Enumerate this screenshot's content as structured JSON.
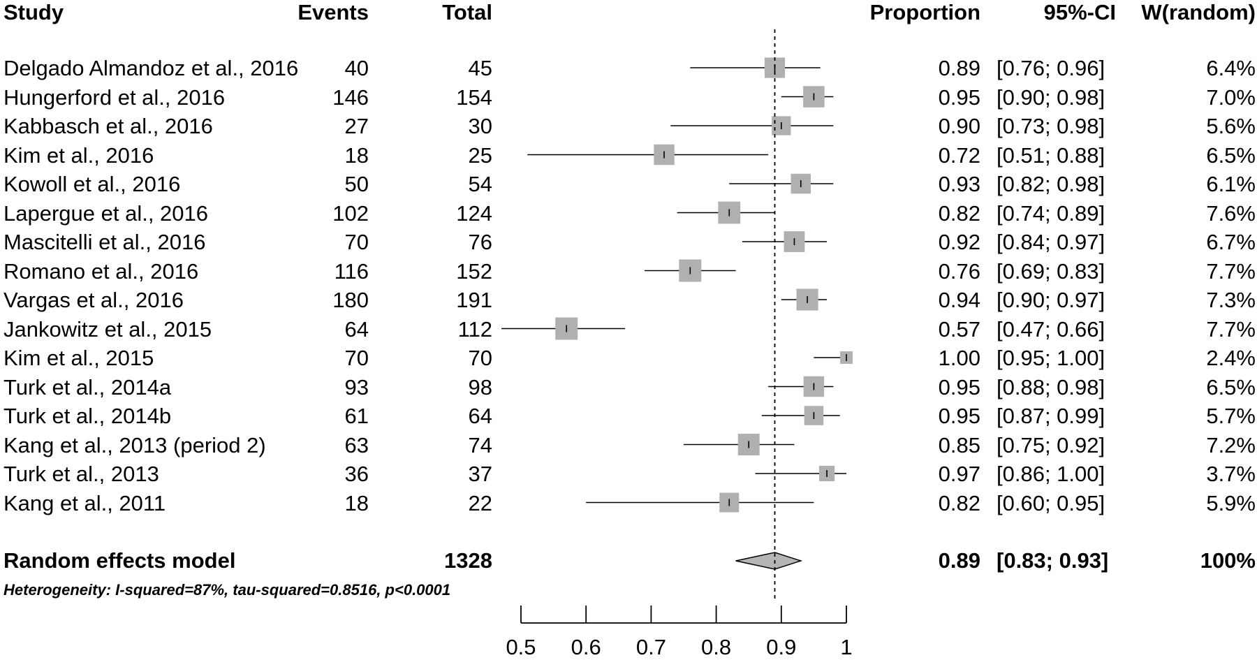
{
  "headers": {
    "study": "Study",
    "events": "Events",
    "total": "Total",
    "proportion": "Proportion",
    "ci": "95%-CI",
    "weight": "W(random)"
  },
  "chart_data": {
    "type": "forest",
    "xlim": [
      0.5,
      1.0
    ],
    "xticks": [
      "0.5",
      "0.6",
      "0.7",
      "0.8",
      "0.9",
      "1"
    ],
    "reference_line": 0.89,
    "studies": [
      {
        "study": "Delgado Almandoz et al., 2016",
        "events": "40",
        "total": "45",
        "proportion": "0.89",
        "ci": "[0.76; 0.96]",
        "weight": "6.4%",
        "p": 0.89,
        "lo": 0.76,
        "hi": 0.96,
        "w": 6.4
      },
      {
        "study": "Hungerford et al., 2016",
        "events": "146",
        "total": "154",
        "proportion": "0.95",
        "ci": "[0.90; 0.98]",
        "weight": "7.0%",
        "p": 0.95,
        "lo": 0.9,
        "hi": 0.98,
        "w": 7.0
      },
      {
        "study": "Kabbasch et al., 2016",
        "events": "27",
        "total": "30",
        "proportion": "0.90",
        "ci": "[0.73; 0.98]",
        "weight": "5.6%",
        "p": 0.9,
        "lo": 0.73,
        "hi": 0.98,
        "w": 5.6
      },
      {
        "study": "Kim et al., 2016",
        "events": "18",
        "total": "25",
        "proportion": "0.72",
        "ci": "[0.51; 0.88]",
        "weight": "6.5%",
        "p": 0.72,
        "lo": 0.51,
        "hi": 0.88,
        "w": 6.5
      },
      {
        "study": "Kowoll et al., 2016",
        "events": "50",
        "total": "54",
        "proportion": "0.93",
        "ci": "[0.82; 0.98]",
        "weight": "6.1%",
        "p": 0.93,
        "lo": 0.82,
        "hi": 0.98,
        "w": 6.1
      },
      {
        "study": "Lapergue et al., 2016",
        "events": "102",
        "total": "124",
        "proportion": "0.82",
        "ci": "[0.74; 0.89]",
        "weight": "7.6%",
        "p": 0.82,
        "lo": 0.74,
        "hi": 0.89,
        "w": 7.6
      },
      {
        "study": "Mascitelli et al., 2016",
        "events": "70",
        "total": "76",
        "proportion": "0.92",
        "ci": "[0.84; 0.97]",
        "weight": "6.7%",
        "p": 0.92,
        "lo": 0.84,
        "hi": 0.97,
        "w": 6.7
      },
      {
        "study": "Romano et al., 2016",
        "events": "116",
        "total": "152",
        "proportion": "0.76",
        "ci": "[0.69; 0.83]",
        "weight": "7.7%",
        "p": 0.76,
        "lo": 0.69,
        "hi": 0.83,
        "w": 7.7
      },
      {
        "study": "Vargas et al., 2016",
        "events": "180",
        "total": "191",
        "proportion": "0.94",
        "ci": "[0.90; 0.97]",
        "weight": "7.3%",
        "p": 0.94,
        "lo": 0.9,
        "hi": 0.97,
        "w": 7.3
      },
      {
        "study": "Jankowitz et al., 2015",
        "events": "64",
        "total": "112",
        "proportion": "0.57",
        "ci": "[0.47; 0.66]",
        "weight": "7.7%",
        "p": 0.57,
        "lo": 0.47,
        "hi": 0.66,
        "w": 7.7
      },
      {
        "study": "Kim et al., 2015",
        "events": "70",
        "total": "70",
        "proportion": "1.00",
        "ci": "[0.95; 1.00]",
        "weight": "2.4%",
        "p": 1.0,
        "lo": 0.95,
        "hi": 1.0,
        "w": 2.4
      },
      {
        "study": "Turk et al., 2014a",
        "events": "93",
        "total": "98",
        "proportion": "0.95",
        "ci": "[0.88; 0.98]",
        "weight": "6.5%",
        "p": 0.95,
        "lo": 0.88,
        "hi": 0.98,
        "w": 6.5
      },
      {
        "study": "Turk et al., 2014b",
        "events": "61",
        "total": "64",
        "proportion": "0.95",
        "ci": "[0.87; 0.99]",
        "weight": "5.7%",
        "p": 0.95,
        "lo": 0.87,
        "hi": 0.99,
        "w": 5.7
      },
      {
        "study": "Kang et al., 2013 (period 2)",
        "events": "63",
        "total": "74",
        "proportion": "0.85",
        "ci": "[0.75; 0.92]",
        "weight": "7.2%",
        "p": 0.85,
        "lo": 0.75,
        "hi": 0.92,
        "w": 7.2
      },
      {
        "study": "Turk et al., 2013",
        "events": "36",
        "total": "37",
        "proportion": "0.97",
        "ci": "[0.86; 1.00]",
        "weight": "3.7%",
        "p": 0.97,
        "lo": 0.86,
        "hi": 1.0,
        "w": 3.7
      },
      {
        "study": "Kang et al., 2011",
        "events": "18",
        "total": "22",
        "proportion": "0.82",
        "ci": "[0.60; 0.95]",
        "weight": "5.9%",
        "p": 0.82,
        "lo": 0.6,
        "hi": 0.95,
        "w": 5.9
      }
    ],
    "summary": {
      "label": "Random effects model",
      "total": "1328",
      "proportion": "0.89",
      "ci": "[0.83; 0.93]",
      "weight": "100%",
      "p": 0.89,
      "lo": 0.83,
      "hi": 0.93
    },
    "heterogeneity": "Heterogeneity: I-squared=87%, tau-squared=0.8516, p<0.0001"
  }
}
